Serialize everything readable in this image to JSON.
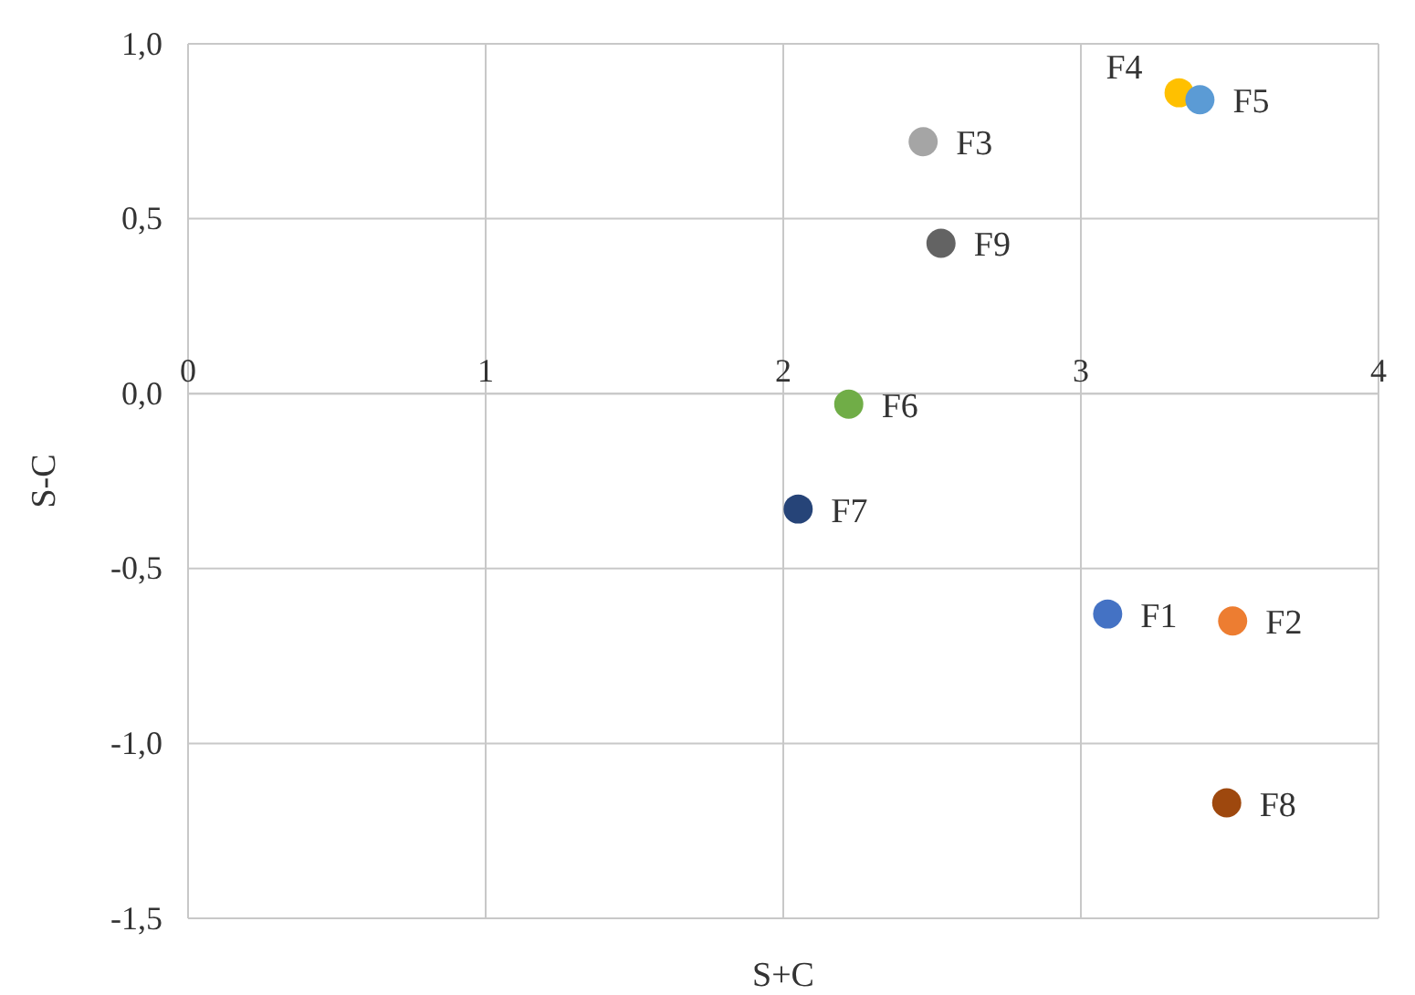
{
  "chart_data": {
    "type": "scatter",
    "xlabel": "S+C",
    "ylabel": "S-C",
    "xlim": [
      0,
      4
    ],
    "ylim": [
      -1.5,
      1
    ],
    "xticks": [
      0,
      1,
      2,
      3,
      4
    ],
    "yticks": [
      {
        "value": -1.5,
        "label": "-1,5"
      },
      {
        "value": -1,
        "label": "-1,0"
      },
      {
        "value": -0.5,
        "label": "-0,5"
      },
      {
        "value": 0,
        "label": "0,0"
      },
      {
        "value": 0.5,
        "label": "0,5"
      },
      {
        "value": 1,
        "label": "1,0"
      }
    ],
    "grid": true,
    "marker": "circle",
    "series": [
      {
        "name": "F1",
        "color": "#4472c4",
        "x": [
          3.09
        ],
        "values": [
          -0.63
        ]
      },
      {
        "name": "F2",
        "color": "#ed7d31",
        "x": [
          3.51
        ],
        "values": [
          -0.65
        ]
      },
      {
        "name": "F3",
        "color": "#a5a5a5",
        "x": [
          2.47
        ],
        "values": [
          0.72
        ]
      },
      {
        "name": "F4",
        "color": "#ffc000",
        "x": [
          3.33
        ],
        "values": [
          0.86
        ]
      },
      {
        "name": "F5",
        "color": "#5b9bd5",
        "x": [
          3.4
        ],
        "values": [
          0.84
        ]
      },
      {
        "name": "F6",
        "color": "#70ad47",
        "x": [
          2.22
        ],
        "values": [
          -0.03
        ]
      },
      {
        "name": "F7",
        "color": "#264478",
        "x": [
          2.05
        ],
        "values": [
          -0.33
        ]
      },
      {
        "name": "F8",
        "color": "#9e480e",
        "x": [
          3.49
        ],
        "values": [
          -1.17
        ]
      },
      {
        "name": "F9",
        "color": "#636363",
        "x": [
          2.53
        ],
        "values": [
          0.43
        ]
      }
    ]
  }
}
